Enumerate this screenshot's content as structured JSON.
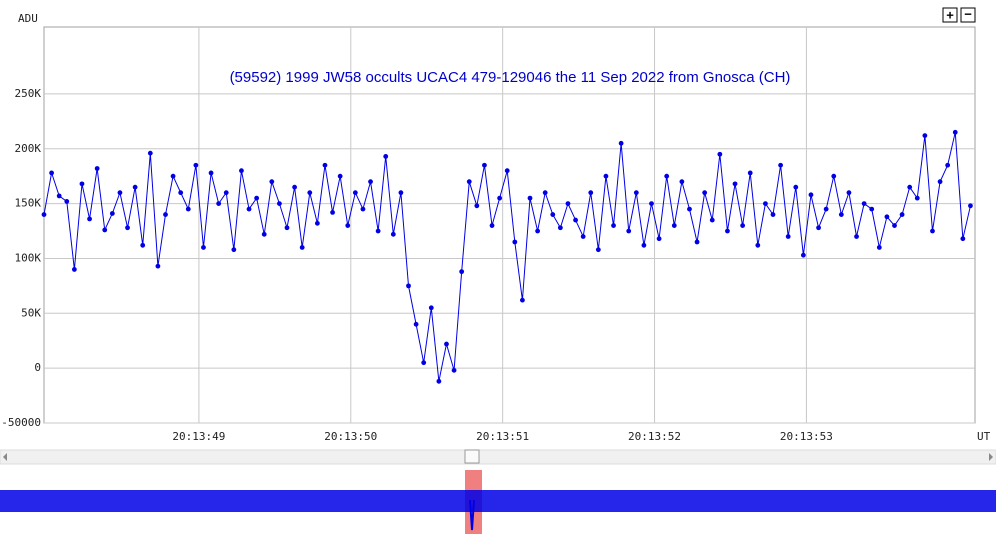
{
  "chart_data": {
    "type": "line",
    "title": "(59592) 1999 JW58 occults UCAC4 479-129046 the 11 Sep 2022 from Gnosca (CH)",
    "y_label": "ADU",
    "x_label": "UT",
    "xlim": [
      47.98,
      54.11
    ],
    "xticks": [
      {
        "value": 49,
        "label": "20:13:49"
      },
      {
        "value": 50,
        "label": "20:13:50"
      },
      {
        "value": 51,
        "label": "20:13:51"
      },
      {
        "value": 52,
        "label": "20:13:52"
      },
      {
        "value": 53,
        "label": "20:13:53"
      }
    ],
    "ylim": [
      -50000,
      311000
    ],
    "yticks": [
      -50000,
      0,
      {
        "value": 50000,
        "label": "50K"
      },
      {
        "value": 100000,
        "label": "100K"
      },
      {
        "value": 150000,
        "label": "150K"
      },
      {
        "value": 200000,
        "label": "200K"
      },
      {
        "value": 250000,
        "label": "250K"
      }
    ],
    "grid": true,
    "buttons": [
      "+",
      "−"
    ],
    "series": [
      {
        "color": "#0000e6",
        "x": [
          47.98,
          48.03,
          48.08,
          48.13,
          48.18,
          48.23,
          48.28,
          48.33,
          48.38,
          48.43,
          48.48,
          48.53,
          48.58,
          48.63,
          48.68,
          48.73,
          48.78,
          48.83,
          48.88,
          48.93,
          48.98,
          49.03,
          49.08,
          49.13,
          49.18,
          49.23,
          49.28,
          49.33,
          49.38,
          49.43,
          49.48,
          49.53,
          49.58,
          49.63,
          49.68,
          49.73,
          49.78,
          49.83,
          49.88,
          49.93,
          49.98,
          50.03,
          50.08,
          50.13,
          50.18,
          50.23,
          50.28,
          50.33,
          50.38,
          50.43,
          50.48,
          50.53,
          50.58,
          50.63,
          50.68,
          50.73,
          50.78,
          50.83,
          50.88,
          50.93,
          50.98,
          51.03,
          51.08,
          51.13,
          51.18,
          51.23,
          51.28,
          51.33,
          51.38,
          51.43,
          51.48,
          51.53,
          51.58,
          51.63,
          51.68,
          51.73,
          51.78,
          51.83,
          51.88,
          51.93,
          51.98,
          52.03,
          52.08,
          52.13,
          52.18,
          52.23,
          52.28,
          52.33,
          52.38,
          52.43,
          52.48,
          52.53,
          52.58,
          52.63,
          52.68,
          52.73,
          52.78,
          52.83,
          52.88,
          52.93,
          52.98,
          53.03,
          53.08,
          53.13,
          53.18,
          53.23,
          53.28,
          53.33,
          53.38,
          53.43,
          53.48,
          53.53,
          53.58,
          53.63,
          53.68,
          53.73,
          53.78,
          53.83,
          53.88,
          53.93,
          53.98,
          54.03,
          54.08
        ],
        "values": [
          140000,
          178000,
          157000,
          152000,
          90000,
          168000,
          136000,
          182000,
          126000,
          141000,
          160000,
          128000,
          165000,
          112000,
          196000,
          93000,
          140000,
          175000,
          160000,
          145000,
          185000,
          110000,
          178000,
          150000,
          160000,
          108000,
          180000,
          145000,
          155000,
          122000,
          170000,
          150000,
          128000,
          165000,
          110000,
          160000,
          132000,
          185000,
          142000,
          175000,
          130000,
          160000,
          145000,
          170000,
          125000,
          193000,
          122000,
          160000,
          75000,
          40000,
          5000,
          55000,
          -12000,
          22000,
          -2000,
          88000,
          170000,
          148000,
          185000,
          130000,
          155000,
          180000,
          115000,
          62000,
          155000,
          125000,
          160000,
          140000,
          128000,
          150000,
          135000,
          120000,
          160000,
          108000,
          175000,
          130000,
          205000,
          125000,
          160000,
          112000,
          150000,
          118000,
          175000,
          130000,
          170000,
          145000,
          115000,
          160000,
          135000,
          195000,
          125000,
          168000,
          130000,
          178000,
          112000,
          150000,
          140000,
          185000,
          120000,
          165000,
          103000,
          158000,
          128000,
          145000,
          175000,
          140000,
          160000,
          120000,
          150000,
          145000,
          110000,
          138000,
          130000,
          140000,
          165000,
          155000,
          212000,
          125000,
          170000,
          185000,
          215000,
          118000,
          148000
        ]
      }
    ]
  }
}
